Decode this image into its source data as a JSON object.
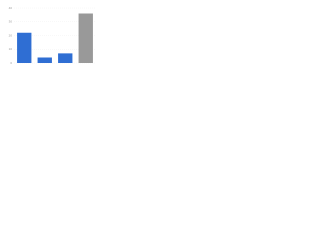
{
  "chart_data": {
    "type": "bar",
    "categories": [
      null,
      null,
      null,
      null
    ],
    "values": [
      22,
      4,
      7,
      36
    ],
    "colors": [
      "#2f6ed3",
      "#2f6ed3",
      "#2f6ed3",
      "#999999"
    ],
    "ylim": [
      0,
      40
    ],
    "yticks": [
      0,
      10,
      20,
      30,
      40
    ],
    "grid": true
  }
}
